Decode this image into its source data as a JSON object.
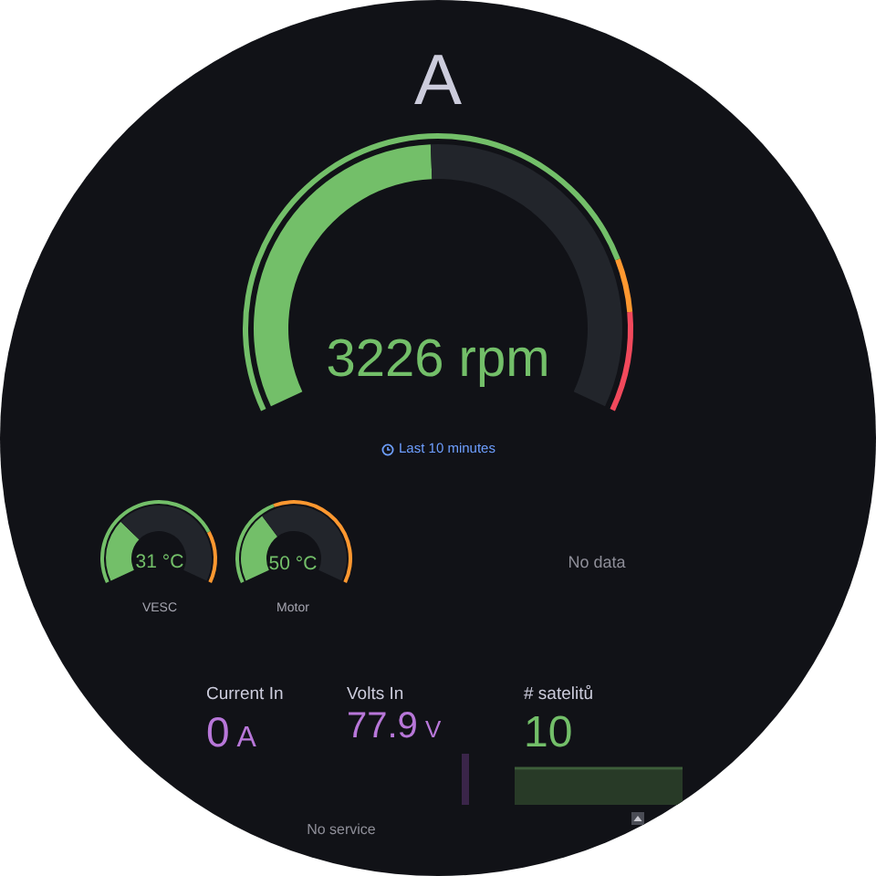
{
  "chart_data": [
    {
      "type": "donut",
      "title": "A",
      "subtitle": "Last 10 minutes",
      "series": [
        {
          "values": [
            49,
            51
          ],
          "colors": [
            "#73bf69",
            "#22252b"
          ]
        },
        {
          "values": [
            80,
            7,
            13
          ],
          "colors": [
            "#73bf69",
            "#ff9830",
            "#f2495c"
          ]
        }
      ],
      "annotations": [
        "3226 rpm"
      ]
    },
    {
      "type": "donut",
      "title": "VESC",
      "series": [
        {
          "values": [
            30,
            70
          ],
          "colors": [
            "#73bf69",
            "#22252b"
          ]
        },
        {
          "values": [
            77,
            23
          ],
          "colors": [
            "#73bf69",
            "#ff9830"
          ]
        }
      ],
      "annotations": [
        "31 °C"
      ]
    },
    {
      "type": "donut",
      "title": "Motor",
      "series": [
        {
          "values": [
            34,
            66
          ],
          "colors": [
            "#73bf69",
            "#22252b"
          ]
        },
        {
          "values": [
            41,
            59
          ],
          "colors": [
            "#73bf69",
            "#ff9830"
          ]
        }
      ],
      "annotations": [
        "50 °C"
      ]
    },
    {
      "type": "other",
      "annotations": [
        "No data"
      ]
    },
    {
      "type": "other",
      "title": "Current In",
      "color": "#b877d9",
      "annotations": [
        "0",
        "A"
      ]
    },
    {
      "type": "other",
      "title": "Volts In",
      "color": "#b877d9",
      "annotations": [
        "77.9",
        "V"
      ]
    },
    {
      "type": "other",
      "title": "# satelitů",
      "color": "#73bf69",
      "annotations": [
        "10"
      ]
    },
    {
      "type": "other",
      "annotations": [
        "No service"
      ]
    }
  ]
}
